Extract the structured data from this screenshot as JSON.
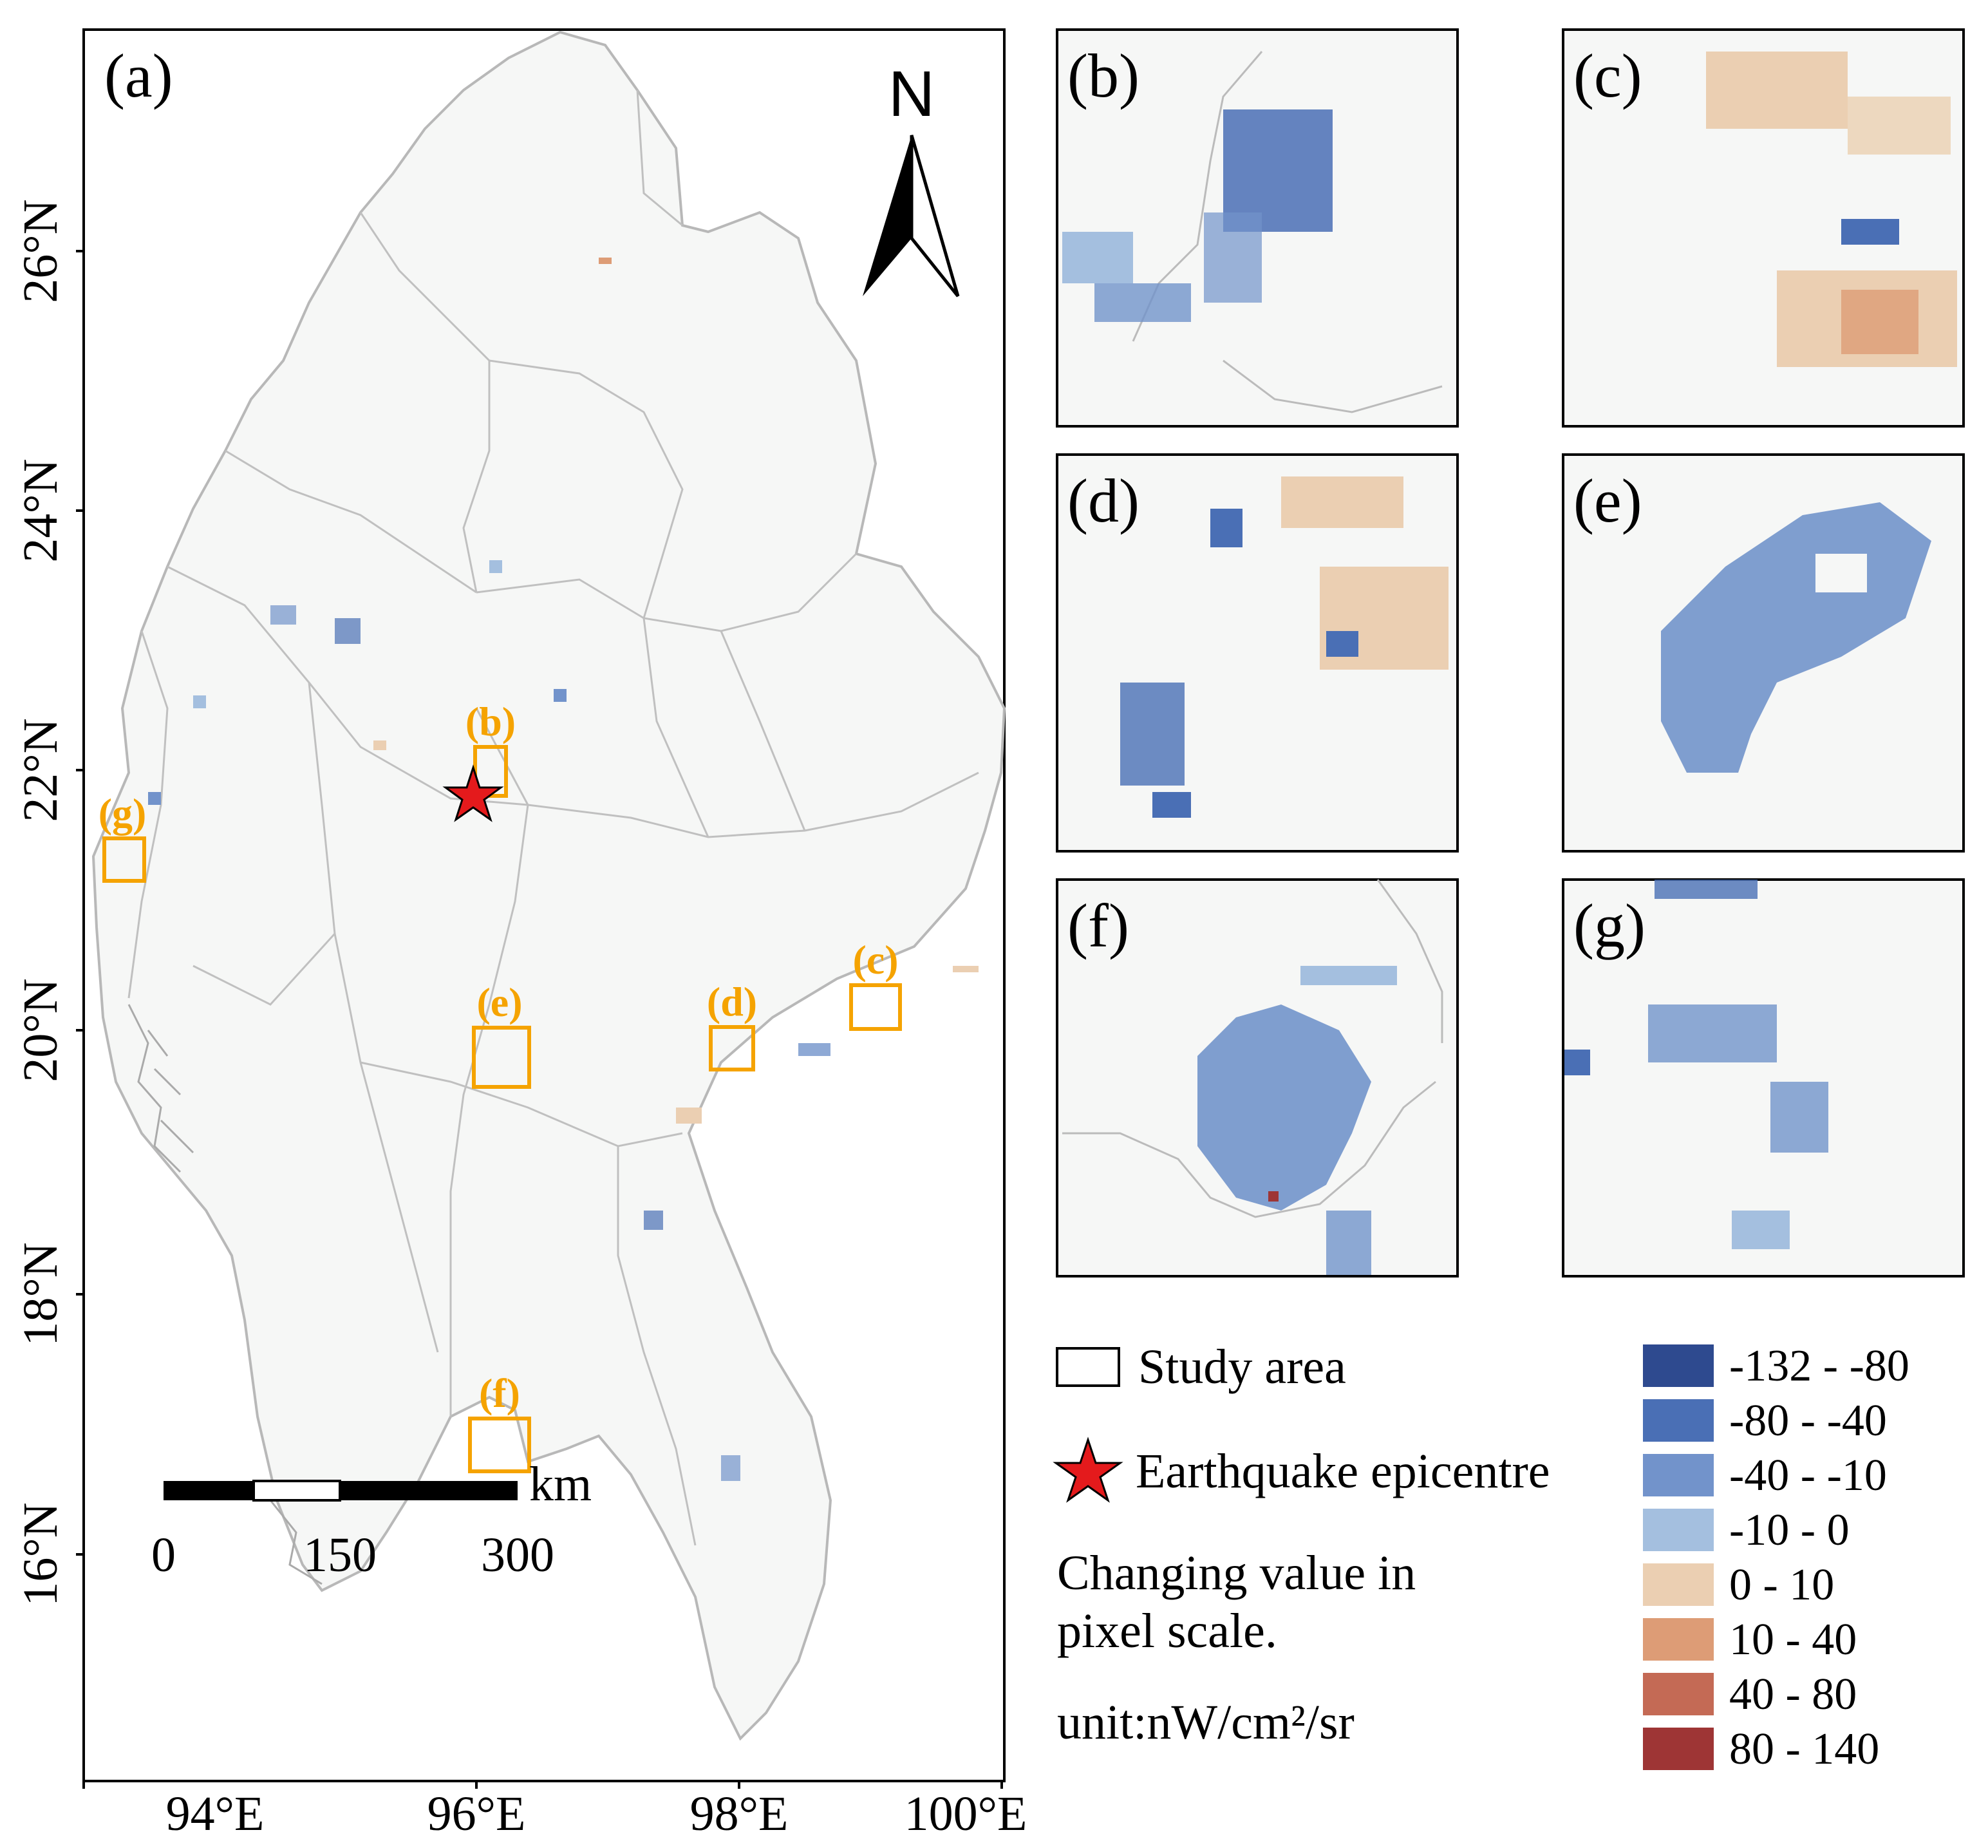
{
  "main_map": {
    "panel_label": "(a)",
    "north_label": "N",
    "lat_ticks": [
      "26°N",
      "24°N",
      "22°N",
      "20°N",
      "18°N",
      "16°N"
    ],
    "lon_ticks": [
      "94°E",
      "96°E",
      "98°E",
      "100°E"
    ],
    "scale_bar": {
      "unit": "km",
      "ticks": [
        "0",
        "150",
        "300"
      ]
    },
    "region_labels": [
      "(b)",
      "(c)",
      "(d)",
      "(e)",
      "(f)",
      "(g)"
    ]
  },
  "insets": [
    "(b)",
    "(c)",
    "(d)",
    "(e)",
    "(f)",
    "(g)"
  ],
  "legend": {
    "study_area": "Study area",
    "epicentre": "Earthquake epicentre",
    "note_line1": "Changing value in",
    "note_line2": "pixel scale.",
    "unit": "unit:nW/cm²/sr",
    "classes": [
      {
        "label": "-132 - -80",
        "color": "#2e4a8f"
      },
      {
        "label": "-80 - -40",
        "color": "#4a6fb5"
      },
      {
        "label": "-40 - -10",
        "color": "#7293cb"
      },
      {
        "label": "-10 - 0",
        "color": "#a4bfdf"
      },
      {
        "label": "0 - 10",
        "color": "#ebcfb2"
      },
      {
        "label": "10 - 40",
        "color": "#dd9c76"
      },
      {
        "label": "40 - 80",
        "color": "#c46a55"
      },
      {
        "label": "80 - 140",
        "color": "#9e3535"
      }
    ]
  },
  "colors": {
    "accent": "#f5a300",
    "boundary": "#b8b8b8",
    "epicentre": "#e41a1c",
    "land": "#f6f7f6"
  }
}
